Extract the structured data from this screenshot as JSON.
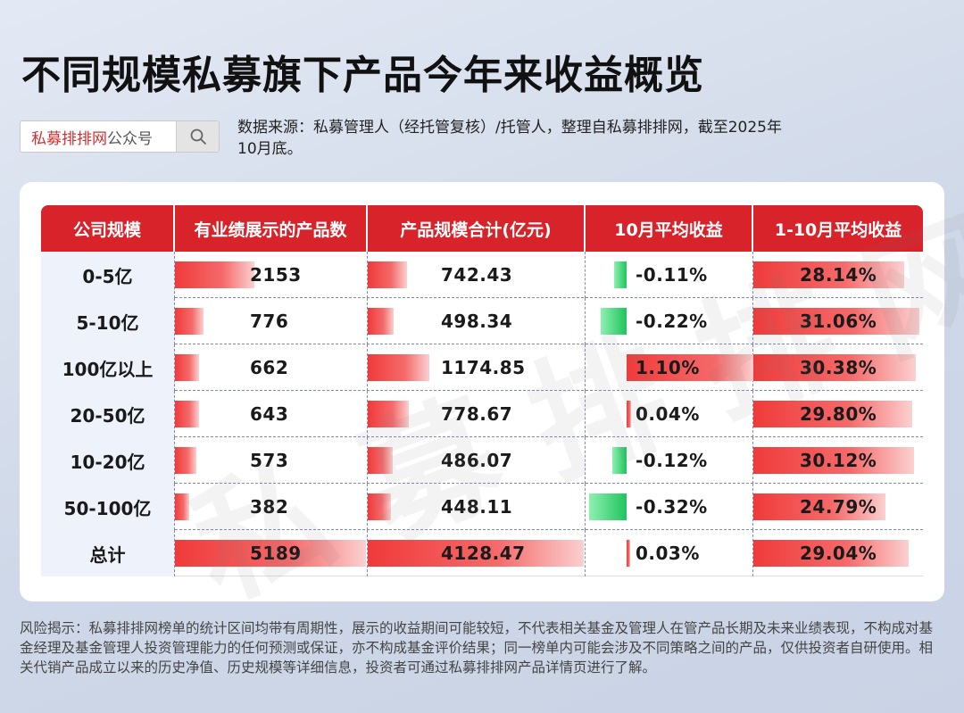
{
  "title": "不同规模私募旗下产品今年来收益概览",
  "search": {
    "brand": "私募排排网",
    "suffix": "公众号",
    "icon": "search-icon"
  },
  "source_text": "数据来源：私募管理人（经托管复核）/托管人，整理自私募排排网，截至2025年10月底。",
  "watermark": "私募排排网",
  "colors": {
    "header": "#d8232a",
    "positive_bar": "#f03a3a",
    "negative_bar": "#1fc45e"
  },
  "chart_data": {
    "type": "table",
    "columns": [
      "公司规模",
      "有业绩展示的产品数",
      "产品规模合计(亿元)",
      "10月平均收益",
      "1-10月平均收益"
    ],
    "rows": [
      {
        "scale": "0-5亿",
        "count": 2153,
        "count_text": "2153",
        "aum": 742.43,
        "aum_text": "742.43",
        "oct": -0.11,
        "oct_text": "-0.11%",
        "ytd": 28.14,
        "ytd_text": "28.14%"
      },
      {
        "scale": "5-10亿",
        "count": 776,
        "count_text": "776",
        "aum": 498.34,
        "aum_text": "498.34",
        "oct": -0.22,
        "oct_text": "-0.22%",
        "ytd": 31.06,
        "ytd_text": "31.06%"
      },
      {
        "scale": "100亿以上",
        "count": 662,
        "count_text": "662",
        "aum": 1174.85,
        "aum_text": "1174.85",
        "oct": 1.1,
        "oct_text": "1.10%",
        "ytd": 30.38,
        "ytd_text": "30.38%"
      },
      {
        "scale": "20-50亿",
        "count": 643,
        "count_text": "643",
        "aum": 778.67,
        "aum_text": "778.67",
        "oct": 0.04,
        "oct_text": "0.04%",
        "ytd": 29.8,
        "ytd_text": "29.80%"
      },
      {
        "scale": "10-20亿",
        "count": 573,
        "count_text": "573",
        "aum": 486.07,
        "aum_text": "486.07",
        "oct": -0.12,
        "oct_text": "-0.12%",
        "ytd": 30.12,
        "ytd_text": "30.12%"
      },
      {
        "scale": "50-100亿",
        "count": 382,
        "count_text": "382",
        "aum": 448.11,
        "aum_text": "448.11",
        "oct": -0.32,
        "oct_text": "-0.32%",
        "ytd": 24.79,
        "ytd_text": "24.79%"
      },
      {
        "scale": "总计",
        "count": 5189,
        "count_text": "5189",
        "aum": 4128.47,
        "aum_text": "4128.47",
        "oct": 0.03,
        "oct_text": "0.03%",
        "ytd": 29.04,
        "ytd_text": "29.04%"
      }
    ]
  },
  "disclaimer": "风险揭示：私募排排网榜单的统计区间均带有周期性，展示的收益期间可能较短，不代表相关基金及管理人在管产品长期及未来业绩表现，不构成对基金经理及基金管理人投资管理能力的任何预测或保证，亦不构成基金评价结果；同一榜单内可能会涉及不同策略之间的产品，仅供投资者自研使用。相关代销产品成立以来的历史净值、历史规模等详细信息，投资者可通过私募排排网产品详情页进行了解。"
}
